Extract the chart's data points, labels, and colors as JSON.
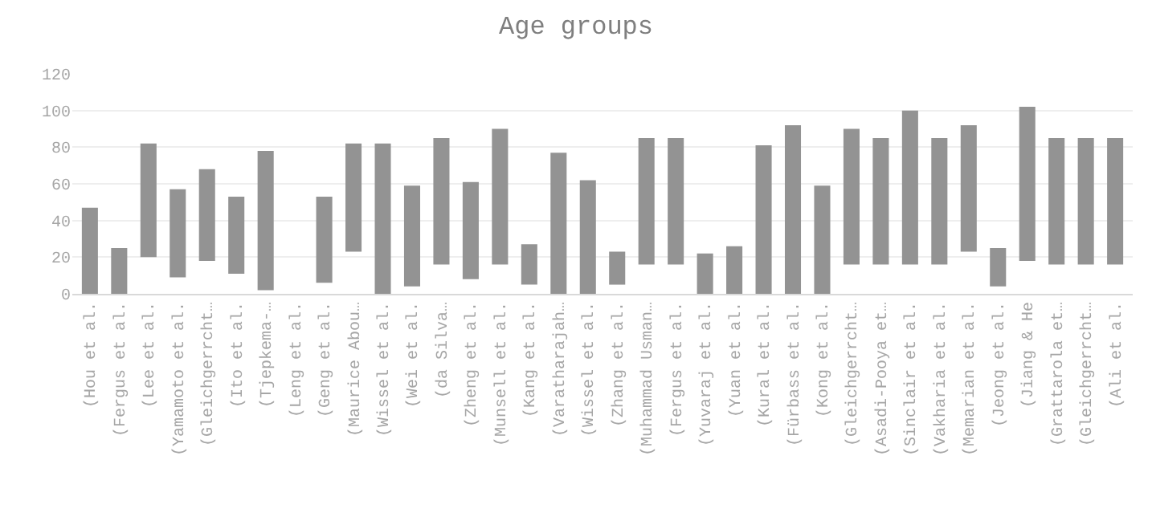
{
  "chart_data": {
    "type": "bar",
    "title": "Age groups",
    "categories": [
      "(Hou et al.",
      "(Fergus et al.",
      "(Lee et al.",
      "(Yamamoto et al.",
      "(Gleichgerrcht…",
      "(Ito et al.",
      "(Tjepkema-…",
      "(Leng et al.",
      "(Geng et al.",
      "(Maurice Abou…",
      "(Wissel et al.",
      "(Wei et al.",
      "(da Silva…",
      "(Zheng et al.",
      "(Munsell et al.",
      "(Kang et al.",
      "(Varatharajah…",
      "(Wissel et al.",
      "(Zhang et al.",
      "(Muhammad Usman…",
      "(Fergus et al.",
      "(Yuvaraj et al.",
      "(Yuan et al.",
      "(Kural et al.",
      "(Fürbass et al.",
      "(Kong et al.",
      "(Gleichgerrcht…",
      "(Asadi-Pooya et…",
      "(Sinclair et al.",
      "(Vakharia et al.",
      "(Memarian et al.",
      "(Jeong et al.",
      "(Jiang & He",
      "(Grattarola et…",
      "(Gleichgerrcht…",
      "(Ali et al."
    ],
    "base": [
      0,
      0,
      20,
      9,
      18,
      11,
      2,
      null,
      6,
      23,
      0,
      4,
      16,
      8,
      16,
      5,
      0,
      0,
      5,
      16,
      16,
      0,
      0,
      0,
      0,
      0,
      16,
      16,
      16,
      16,
      23,
      4,
      18,
      16,
      16,
      16
    ],
    "values": [
      47,
      25,
      62,
      48,
      50,
      42,
      76,
      null,
      47,
      59,
      82,
      55,
      69,
      53,
      74,
      22,
      77,
      62,
      18,
      69,
      69,
      22,
      26,
      81,
      92,
      59,
      74,
      69,
      84,
      69,
      69,
      21,
      84,
      69,
      69,
      69
    ],
    "color": "#939393",
    "ylim": [
      0,
      120
    ],
    "yticks": [
      0,
      20,
      40,
      60,
      80,
      100,
      120
    ],
    "grid": "y",
    "legend": false
  }
}
